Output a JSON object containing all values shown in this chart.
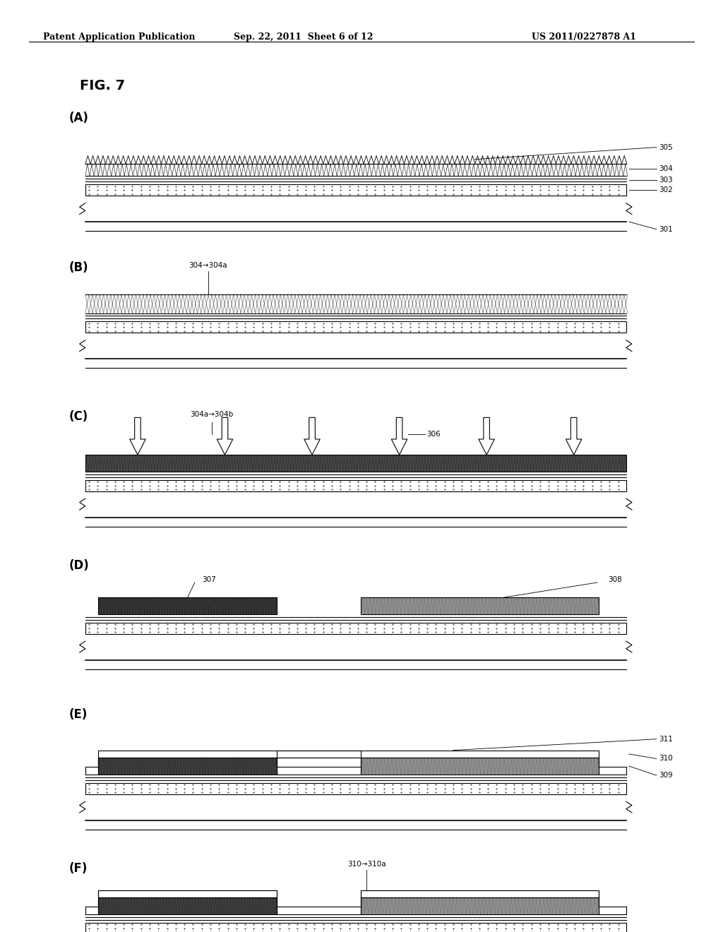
{
  "header_left": "Patent Application Publication",
  "header_mid": "Sep. 22, 2011  Sheet 6 of 12",
  "header_right": "US 2011/0227878 A1",
  "fig_title": "FIG. 7",
  "bg_color": "#ffffff",
  "panel_labels": [
    "(A)",
    "(B)",
    "(C)",
    "(D)",
    "(E)",
    "(F)"
  ],
  "ref_numbers_A": [
    "305",
    "304",
    "303",
    "302",
    "301"
  ],
  "ref_numbers_B": [
    "304→304a"
  ],
  "ref_numbers_C": [
    "304a→304b",
    "306"
  ],
  "ref_numbers_D": [
    "307",
    "308"
  ],
  "ref_numbers_E": [
    "311",
    "310",
    "309"
  ],
  "ref_numbers_F": [
    "310→310a"
  ]
}
